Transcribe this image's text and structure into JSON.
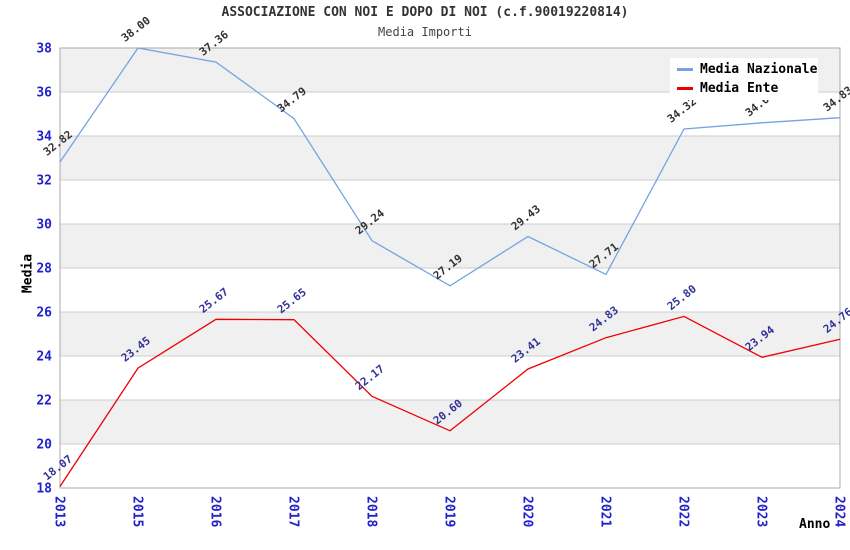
{
  "chart_data": {
    "type": "line",
    "title": "ASSOCIAZIONE CON NOI E DOPO DI NOI (c.f.90019220814)",
    "subtitle": "Media Importi",
    "xlabel": "Anno",
    "ylabel": "Media",
    "categories": [
      "2013",
      "2015",
      "2016",
      "2017",
      "2018",
      "2019",
      "2020",
      "2021",
      "2022",
      "2023",
      "2024"
    ],
    "series": [
      {
        "name": "Media Nazionale",
        "color": "#74A3E3",
        "label_color": "#333333",
        "values": [
          32.82,
          38.0,
          37.36,
          34.79,
          29.24,
          27.19,
          29.43,
          27.71,
          34.32,
          34.6,
          34.83
        ]
      },
      {
        "name": "Media Ente",
        "color": "#EE0000",
        "label_color": "#333399",
        "values": [
          18.07,
          23.45,
          25.67,
          25.65,
          22.17,
          20.6,
          23.41,
          24.83,
          25.8,
          23.94,
          24.76
        ]
      }
    ],
    "ylim": [
      18,
      38
    ],
    "ytick_step": 2,
    "yticks": [
      18,
      20,
      22,
      24,
      26,
      28,
      30,
      32,
      34,
      36,
      38
    ],
    "grid": "horizontal",
    "band_colors": [
      "#F0F0F0",
      "#FFFFFF"
    ],
    "gridline_color": "#CCCCCC",
    "plot_border_color": "#AAAAAA",
    "tick_label_color": "#2222CC",
    "legend_position": "top-right"
  }
}
